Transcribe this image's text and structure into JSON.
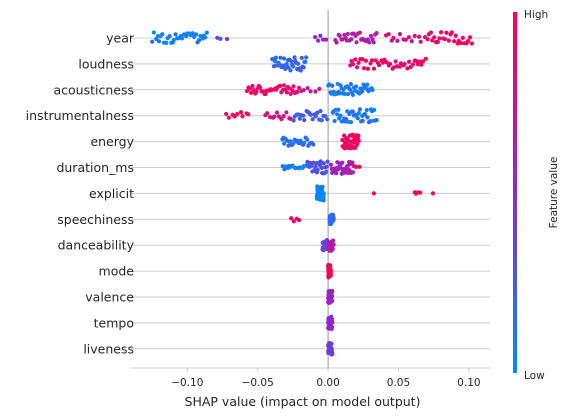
{
  "chart_data": {
    "type": "scatter",
    "subtype": "shap-beeswarm",
    "title": "",
    "xlabel": "SHAP value (impact on model output)",
    "ylabel": "",
    "xlim": [
      -0.14,
      0.115
    ],
    "xticks": [
      -0.1,
      -0.05,
      0.0,
      0.05,
      0.1
    ],
    "xtick_labels": [
      "−0.10",
      "−0.05",
      "0.00",
      "0.05",
      "0.10"
    ],
    "grid": "horizontal",
    "zero_line": true,
    "colorbar": {
      "label": "Feature value",
      "high_label": "High",
      "low_label": "Low",
      "low_color": "#008bfb",
      "high_color": "#ff0052",
      "placement": "right"
    },
    "features": [
      {
        "name": "year",
        "clusters": [
          {
            "from": -0.125,
            "to": -0.085,
            "val": 0.05,
            "n": 34,
            "spread": 0.8
          },
          {
            "from": -0.08,
            "to": -0.07,
            "val": 0.35,
            "n": 3,
            "spread": 0.3
          },
          {
            "from": -0.01,
            "to": 0.0,
            "val": 0.55,
            "n": 5,
            "spread": 0.4
          },
          {
            "from": 0.005,
            "to": 0.035,
            "val": 0.65,
            "n": 30,
            "spread": 0.8
          },
          {
            "from": 0.04,
            "to": 0.07,
            "val": 0.8,
            "n": 14,
            "spread": 0.6
          },
          {
            "from": 0.07,
            "to": 0.103,
            "val": 0.95,
            "n": 26,
            "spread": 0.9
          }
        ]
      },
      {
        "name": "loudness",
        "clusters": [
          {
            "from": -0.04,
            "to": -0.015,
            "val": 0.2,
            "n": 38,
            "spread": 1.0
          },
          {
            "from": 0.015,
            "to": 0.07,
            "val": 0.9,
            "n": 42,
            "spread": 0.75
          }
        ]
      },
      {
        "name": "acousticness",
        "clusters": [
          {
            "from": -0.058,
            "to": -0.02,
            "val": 0.92,
            "n": 40,
            "spread": 0.65
          },
          {
            "from": -0.02,
            "to": -0.005,
            "val": 0.7,
            "n": 6,
            "spread": 0.4
          },
          {
            "from": 0.0,
            "to": 0.032,
            "val": 0.1,
            "n": 44,
            "spread": 0.85
          }
        ]
      },
      {
        "name": "instrumentalness",
        "clusters": [
          {
            "from": -0.073,
            "to": -0.055,
            "val": 0.95,
            "n": 9,
            "spread": 0.5
          },
          {
            "from": -0.045,
            "to": -0.025,
            "val": 0.8,
            "n": 12,
            "spread": 0.5
          },
          {
            "from": -0.025,
            "to": 0.0,
            "val": 0.25,
            "n": 22,
            "spread": 0.7
          },
          {
            "from": 0.003,
            "to": 0.035,
            "val": 0.08,
            "n": 40,
            "spread": 0.95
          }
        ]
      },
      {
        "name": "energy",
        "clusters": [
          {
            "from": -0.033,
            "to": -0.01,
            "val": 0.15,
            "n": 26,
            "spread": 0.6
          },
          {
            "from": 0.01,
            "to": 0.022,
            "val": 0.95,
            "n": 44,
            "spread": 1.0
          }
        ]
      },
      {
        "name": "duration_ms",
        "clusters": [
          {
            "from": -0.033,
            "to": -0.015,
            "val": 0.05,
            "n": 14,
            "spread": 0.3
          },
          {
            "from": -0.015,
            "to": 0.0,
            "val": 0.3,
            "n": 28,
            "spread": 0.9
          },
          {
            "from": 0.002,
            "to": 0.018,
            "val": 0.6,
            "n": 40,
            "spread": 0.9
          },
          {
            "from": 0.018,
            "to": 0.023,
            "val": 0.95,
            "n": 3,
            "spread": 0.3
          }
        ]
      },
      {
        "name": "explicit",
        "clusters": [
          {
            "from": -0.008,
            "to": -0.003,
            "val": 0.02,
            "n": 60,
            "spread": 1.0
          },
          {
            "from": 0.032,
            "to": 0.033,
            "val": 0.98,
            "n": 1,
            "spread": 0.0
          },
          {
            "from": 0.061,
            "to": 0.066,
            "val": 0.98,
            "n": 4,
            "spread": 0.3
          },
          {
            "from": 0.074,
            "to": 0.075,
            "val": 0.98,
            "n": 1,
            "spread": 0.0
          }
        ]
      },
      {
        "name": "speechiness",
        "clusters": [
          {
            "from": -0.027,
            "to": -0.019,
            "val": 0.98,
            "n": 4,
            "spread": 0.3
          },
          {
            "from": 0.001,
            "to": 0.004,
            "val": 0.15,
            "n": 40,
            "spread": 0.7
          }
        ]
      },
      {
        "name": "danceability",
        "clusters": [
          {
            "from": -0.004,
            "to": 0.0,
            "val": 0.35,
            "n": 24,
            "spread": 0.8
          },
          {
            "from": 0.0,
            "to": 0.004,
            "val": 0.7,
            "n": 24,
            "spread": 0.8
          }
        ]
      },
      {
        "name": "mode",
        "clusters": [
          {
            "from": 0.0,
            "to": 0.002,
            "val": 0.95,
            "n": 46,
            "spread": 0.9
          }
        ]
      },
      {
        "name": "valence",
        "clusters": [
          {
            "from": 0.0,
            "to": 0.003,
            "val": 0.55,
            "n": 46,
            "spread": 0.9
          }
        ]
      },
      {
        "name": "tempo",
        "clusters": [
          {
            "from": 0.0,
            "to": 0.003,
            "val": 0.5,
            "n": 46,
            "spread": 0.9
          }
        ]
      },
      {
        "name": "liveness",
        "clusters": [
          {
            "from": 0.0,
            "to": 0.003,
            "val": 0.4,
            "n": 44,
            "spread": 0.9
          }
        ]
      }
    ]
  }
}
